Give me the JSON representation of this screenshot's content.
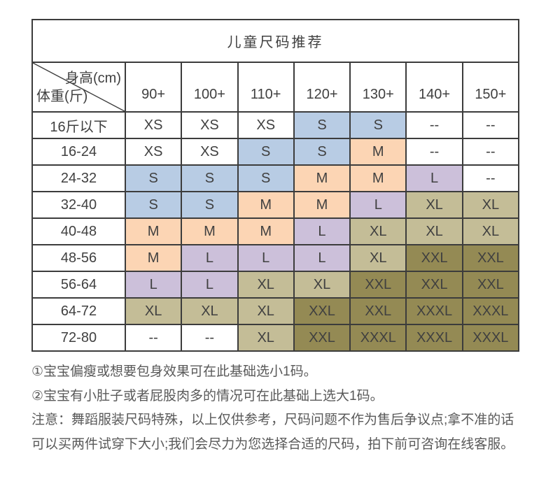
{
  "title": "儿童尺码推荐",
  "corner": {
    "height_label": "身高(cm)",
    "weight_label": "体重(斤)"
  },
  "table": {
    "columns": [
      "90+",
      "100+",
      "110+",
      "120+",
      "130+",
      "140+",
      "150+"
    ],
    "cell_colors": {
      "white": "#ffffff",
      "blue": "#b8cce4",
      "peach": "#fcd5b4",
      "purple": "#ccc0da",
      "khaki": "#c4bd97",
      "olive": "#948a54"
    },
    "rows": [
      {
        "label": "16斤以下",
        "cells": [
          {
            "size": "XS",
            "color": "white"
          },
          {
            "size": "XS",
            "color": "white"
          },
          {
            "size": "XS",
            "color": "white"
          },
          {
            "size": "S",
            "color": "blue"
          },
          {
            "size": "S",
            "color": "blue"
          },
          {
            "size": "--",
            "color": "white"
          },
          {
            "size": "--",
            "color": "white"
          }
        ]
      },
      {
        "label": "16-24",
        "cells": [
          {
            "size": "XS",
            "color": "white"
          },
          {
            "size": "XS",
            "color": "white"
          },
          {
            "size": "S",
            "color": "blue"
          },
          {
            "size": "S",
            "color": "blue"
          },
          {
            "size": "M",
            "color": "peach"
          },
          {
            "size": "--",
            "color": "white"
          },
          {
            "size": "--",
            "color": "white"
          }
        ]
      },
      {
        "label": "24-32",
        "cells": [
          {
            "size": "S",
            "color": "blue"
          },
          {
            "size": "S",
            "color": "blue"
          },
          {
            "size": "S",
            "color": "blue"
          },
          {
            "size": "M",
            "color": "peach"
          },
          {
            "size": "M",
            "color": "peach"
          },
          {
            "size": "L",
            "color": "purple"
          },
          {
            "size": "--",
            "color": "white"
          }
        ]
      },
      {
        "label": "32-40",
        "cells": [
          {
            "size": "S",
            "color": "blue"
          },
          {
            "size": "S",
            "color": "blue"
          },
          {
            "size": "M",
            "color": "peach"
          },
          {
            "size": "M",
            "color": "peach"
          },
          {
            "size": "L",
            "color": "purple"
          },
          {
            "size": "XL",
            "color": "khaki"
          },
          {
            "size": "XL",
            "color": "khaki"
          }
        ]
      },
      {
        "label": "40-48",
        "cells": [
          {
            "size": "M",
            "color": "peach"
          },
          {
            "size": "M",
            "color": "peach"
          },
          {
            "size": "M",
            "color": "peach"
          },
          {
            "size": "L",
            "color": "purple"
          },
          {
            "size": "XL",
            "color": "khaki"
          },
          {
            "size": "XL",
            "color": "khaki"
          },
          {
            "size": "XL",
            "color": "khaki"
          }
        ]
      },
      {
        "label": "48-56",
        "cells": [
          {
            "size": "M",
            "color": "peach"
          },
          {
            "size": "L",
            "color": "purple"
          },
          {
            "size": "L",
            "color": "purple"
          },
          {
            "size": "L",
            "color": "purple"
          },
          {
            "size": "XL",
            "color": "khaki"
          },
          {
            "size": "XXL",
            "color": "olive"
          },
          {
            "size": "XXL",
            "color": "olive"
          }
        ]
      },
      {
        "label": "56-64",
        "cells": [
          {
            "size": "L",
            "color": "purple"
          },
          {
            "size": "L",
            "color": "purple"
          },
          {
            "size": "XL",
            "color": "khaki"
          },
          {
            "size": "XL",
            "color": "khaki"
          },
          {
            "size": "XXL",
            "color": "olive"
          },
          {
            "size": "XXL",
            "color": "olive"
          },
          {
            "size": "XXL",
            "color": "olive"
          }
        ]
      },
      {
        "label": "64-72",
        "cells": [
          {
            "size": "XL",
            "color": "khaki"
          },
          {
            "size": "XL",
            "color": "khaki"
          },
          {
            "size": "XL",
            "color": "khaki"
          },
          {
            "size": "XXL",
            "color": "olive"
          },
          {
            "size": "XXL",
            "color": "olive"
          },
          {
            "size": "XXXL",
            "color": "olive"
          },
          {
            "size": "XXXL",
            "color": "olive"
          }
        ]
      },
      {
        "label": "72-80",
        "cells": [
          {
            "size": "--",
            "color": "white"
          },
          {
            "size": "--",
            "color": "white"
          },
          {
            "size": "XL",
            "color": "khaki"
          },
          {
            "size": "XXL",
            "color": "olive"
          },
          {
            "size": "XXXL",
            "color": "olive"
          },
          {
            "size": "XXXL",
            "color": "olive"
          },
          {
            "size": "XXXL",
            "color": "olive"
          }
        ]
      }
    ]
  },
  "notes": [
    "①宝宝偏瘦或想要包身效果可在此基础选小1码。",
    "②宝宝有小肚子或者屁股肉多的情况可在此基础上选大1码。",
    "注意：舞蹈服装尺码特殊，以上仅供参考，尺码问题不作为售后争议点;拿不准的话",
    "可以买两件试穿下大小;我们会尽力为您选择合适的尺码，拍下前可咨询在线客服。"
  ]
}
